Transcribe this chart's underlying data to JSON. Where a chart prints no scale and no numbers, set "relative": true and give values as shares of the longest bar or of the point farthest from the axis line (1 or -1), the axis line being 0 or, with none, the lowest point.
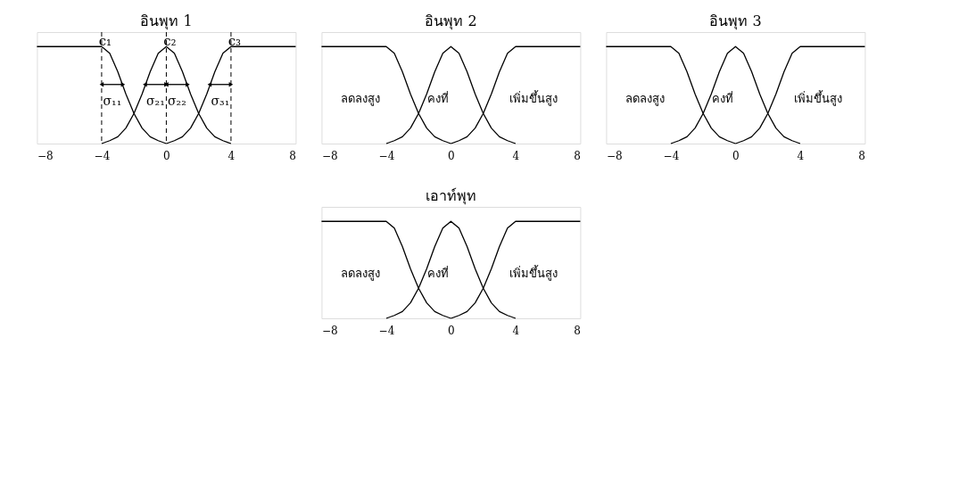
{
  "chart_data": [
    {
      "type": "line",
      "title": "อินพุท 1",
      "relative": true,
      "xlim": [
        -8,
        8
      ],
      "xticks": [
        -8,
        -4,
        0,
        4,
        8
      ],
      "grid": false,
      "series": [
        {
          "color": "#000000",
          "x": [
            -8,
            -4,
            -3.5,
            -3,
            -2.5,
            -2,
            -1.5,
            -1,
            -0.5,
            0
          ],
          "values": [
            1,
            1,
            0.93,
            0.74,
            0.51,
            0.31,
            0.16,
            0.07,
            0.03,
            0
          ]
        },
        {
          "color": "#000000",
          "x": [
            -4,
            -3.5,
            -3,
            -2.5,
            -2,
            -1.5,
            -1,
            -0.5,
            0,
            0.5,
            1,
            1.5,
            2,
            2.5,
            3,
            3.5,
            4
          ],
          "values": [
            0,
            0.03,
            0.07,
            0.16,
            0.31,
            0.51,
            0.74,
            0.93,
            1,
            0.93,
            0.74,
            0.51,
            0.31,
            0.16,
            0.07,
            0.03,
            0
          ]
        },
        {
          "color": "#000000",
          "x": [
            0,
            0.5,
            1,
            1.5,
            2,
            2.5,
            3,
            3.5,
            4,
            8
          ],
          "values": [
            0,
            0.03,
            0.07,
            0.16,
            0.31,
            0.51,
            0.74,
            0.93,
            1,
            1
          ]
        }
      ],
      "ref_lines": [
        {
          "axis": "x",
          "value": -4,
          "label": "c₁",
          "line_style": "dashed"
        },
        {
          "axis": "x",
          "value": 0,
          "label": "c₂",
          "line_style": "dashed"
        },
        {
          "axis": "x",
          "value": 4,
          "label": "c₃",
          "line_style": "dashed"
        }
      ],
      "annotations": [
        "σ₁₁",
        "σ₂₁",
        "σ₂₂",
        "σ₃₁"
      ]
    },
    {
      "type": "line",
      "title": "อินพุท 2",
      "relative": true,
      "xlim": [
        -8,
        8
      ],
      "xticks": [
        -8,
        -4,
        0,
        4,
        8
      ],
      "grid": false,
      "series": [
        {
          "color": "#000000",
          "x": [
            -8,
            -4,
            -3.5,
            -3,
            -2.5,
            -2,
            -1.5,
            -1,
            -0.5,
            0
          ],
          "values": [
            1,
            1,
            0.93,
            0.74,
            0.51,
            0.31,
            0.16,
            0.07,
            0.03,
            0
          ]
        },
        {
          "color": "#000000",
          "x": [
            -4,
            -3.5,
            -3,
            -2.5,
            -2,
            -1.5,
            -1,
            -0.5,
            0,
            0.5,
            1,
            1.5,
            2,
            2.5,
            3,
            3.5,
            4
          ],
          "values": [
            0,
            0.03,
            0.07,
            0.16,
            0.31,
            0.51,
            0.74,
            0.93,
            1,
            0.93,
            0.74,
            0.51,
            0.31,
            0.16,
            0.07,
            0.03,
            0
          ]
        },
        {
          "color": "#000000",
          "x": [
            0,
            0.5,
            1,
            1.5,
            2,
            2.5,
            3,
            3.5,
            4,
            8
          ],
          "values": [
            0,
            0.03,
            0.07,
            0.16,
            0.31,
            0.51,
            0.74,
            0.93,
            1,
            1
          ]
        }
      ],
      "annotations": [
        "ลดลงสูง",
        "คงที่",
        "เพิ่มขึ้นสูง"
      ]
    },
    {
      "type": "line",
      "title": "อินพุท 3",
      "relative": true,
      "xlim": [
        -8,
        8
      ],
      "xticks": [
        -8,
        -4,
        0,
        4,
        8
      ],
      "grid": false,
      "series": [
        {
          "color": "#000000",
          "x": [
            -8,
            -4,
            -3.5,
            -3,
            -2.5,
            -2,
            -1.5,
            -1,
            -0.5,
            0
          ],
          "values": [
            1,
            1,
            0.93,
            0.74,
            0.51,
            0.31,
            0.16,
            0.07,
            0.03,
            0
          ]
        },
        {
          "color": "#000000",
          "x": [
            -4,
            -3.5,
            -3,
            -2.5,
            -2,
            -1.5,
            -1,
            -0.5,
            0,
            0.5,
            1,
            1.5,
            2,
            2.5,
            3,
            3.5,
            4
          ],
          "values": [
            0,
            0.03,
            0.07,
            0.16,
            0.31,
            0.51,
            0.74,
            0.93,
            1,
            0.93,
            0.74,
            0.51,
            0.31,
            0.16,
            0.07,
            0.03,
            0
          ]
        },
        {
          "color": "#000000",
          "x": [
            0,
            0.5,
            1,
            1.5,
            2,
            2.5,
            3,
            3.5,
            4,
            8
          ],
          "values": [
            0,
            0.03,
            0.07,
            0.16,
            0.31,
            0.51,
            0.74,
            0.93,
            1,
            1
          ]
        }
      ],
      "annotations": [
        "ลดลงสูง",
        "คงที่",
        "เพิ่มขึ้นสูง"
      ]
    },
    {
      "type": "line",
      "title": "เอาท์พุท",
      "relative": true,
      "xlim": [
        -8,
        8
      ],
      "xticks": [
        -8,
        -4,
        0,
        4,
        8
      ],
      "grid": false,
      "series": [
        {
          "color": "#000000",
          "x": [
            -8,
            -4,
            -3.5,
            -3,
            -2.5,
            -2,
            -1.5,
            -1,
            -0.5,
            0
          ],
          "values": [
            1,
            1,
            0.93,
            0.74,
            0.51,
            0.31,
            0.16,
            0.07,
            0.03,
            0
          ]
        },
        {
          "color": "#000000",
          "x": [
            -4,
            -3.5,
            -3,
            -2.5,
            -2,
            -1.5,
            -1,
            -0.5,
            0,
            0.5,
            1,
            1.5,
            2,
            2.5,
            3,
            3.5,
            4
          ],
          "values": [
            0,
            0.03,
            0.07,
            0.16,
            0.31,
            0.51,
            0.74,
            0.93,
            1,
            0.93,
            0.74,
            0.51,
            0.31,
            0.16,
            0.07,
            0.03,
            0
          ]
        },
        {
          "color": "#000000",
          "x": [
            0,
            0.5,
            1,
            1.5,
            2,
            2.5,
            3,
            3.5,
            4,
            8
          ],
          "values": [
            0,
            0.03,
            0.07,
            0.16,
            0.31,
            0.51,
            0.74,
            0.93,
            1,
            1
          ]
        }
      ],
      "annotations": [
        "ลดลงสูง",
        "คงที่",
        "เพิ่มขึ้นสูง"
      ]
    }
  ]
}
